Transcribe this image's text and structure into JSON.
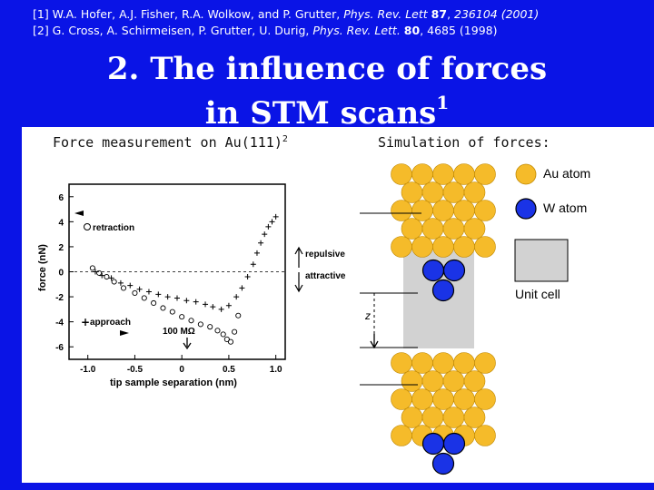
{
  "references": [
    {
      "prefix": "[1] W.A. Hofer, A.J. Fisher, R.A. Wolkow, and P. Grutter, ",
      "journal": "Phys. Rev. Lett",
      "volume": "87",
      "pages": "236104 (2001)"
    },
    {
      "prefix": "[2] G. Cross, A. Schirmeisen, P. Grutter, U. Durig, ",
      "journal": "Phys. Rev. Lett.",
      "volume": "80",
      "pages": "4685 (1998)"
    }
  ],
  "title": {
    "line1": "2. The influence of forces",
    "line2": "in STM scans",
    "line2_sup": "1"
  },
  "left_caption": {
    "text": "Force measurement on Au(111)",
    "sup": "2"
  },
  "right_caption": "Simulation of forces:",
  "colors": {
    "background": "#0a14e6",
    "gold_atom": "#f5bb2a",
    "w_atom": "#1a33e6",
    "unit_cell": "#d2d2d2"
  },
  "chart_data": {
    "type": "scatter",
    "xlabel": "tip sample separation (nm)",
    "ylabel": "force (nN)",
    "xlim": [
      -1.2,
      1.1
    ],
    "ylim": [
      -7,
      7
    ],
    "xticks": [
      "-1.0",
      "-0.5",
      "0",
      "0.5",
      "1.0"
    ],
    "yticks": [
      "6",
      "4",
      "2",
      "0",
      "-2",
      "-4",
      "-6"
    ],
    "annotations": {
      "retraction": "retraction",
      "approach": "approach",
      "repulsive": "repulsive",
      "attractive": "attractive",
      "resistance": "100 MΩ"
    },
    "series": [
      {
        "name": "retraction",
        "marker": "o",
        "x": [
          -0.95,
          -0.88,
          -0.8,
          -0.72,
          -0.62,
          -0.5,
          -0.4,
          -0.3,
          -0.2,
          -0.1,
          0.0,
          0.1,
          0.2,
          0.3,
          0.38,
          0.44,
          0.48,
          0.52,
          0.56,
          0.6
        ],
        "y": [
          0.3,
          -0.1,
          -0.4,
          -0.8,
          -1.3,
          -1.7,
          -2.1,
          -2.5,
          -2.9,
          -3.2,
          -3.6,
          -3.9,
          -4.2,
          -4.4,
          -4.7,
          -5.0,
          -5.4,
          -5.6,
          -4.8,
          -3.5
        ]
      },
      {
        "name": "approach",
        "marker": "+",
        "x": [
          -0.92,
          -0.85,
          -0.75,
          -0.65,
          -0.55,
          -0.45,
          -0.35,
          -0.25,
          -0.15,
          -0.05,
          0.05,
          0.15,
          0.25,
          0.33,
          0.42,
          0.5,
          0.58,
          0.64,
          0.7,
          0.76,
          0.8,
          0.84,
          0.88,
          0.92,
          0.96,
          1.0
        ],
        "y": [
          0.0,
          -0.3,
          -0.5,
          -0.9,
          -1.1,
          -1.4,
          -1.6,
          -1.8,
          -2.0,
          -2.1,
          -2.3,
          -2.4,
          -2.6,
          -2.8,
          -3.0,
          -2.7,
          -2.0,
          -1.3,
          -0.4,
          0.6,
          1.5,
          2.3,
          3.0,
          3.6,
          4.0,
          4.4
        ]
      }
    ]
  },
  "legend_labels": {
    "au": "Au atom",
    "w": "W atom",
    "unit_cell": "Unit cell",
    "z": "z"
  }
}
